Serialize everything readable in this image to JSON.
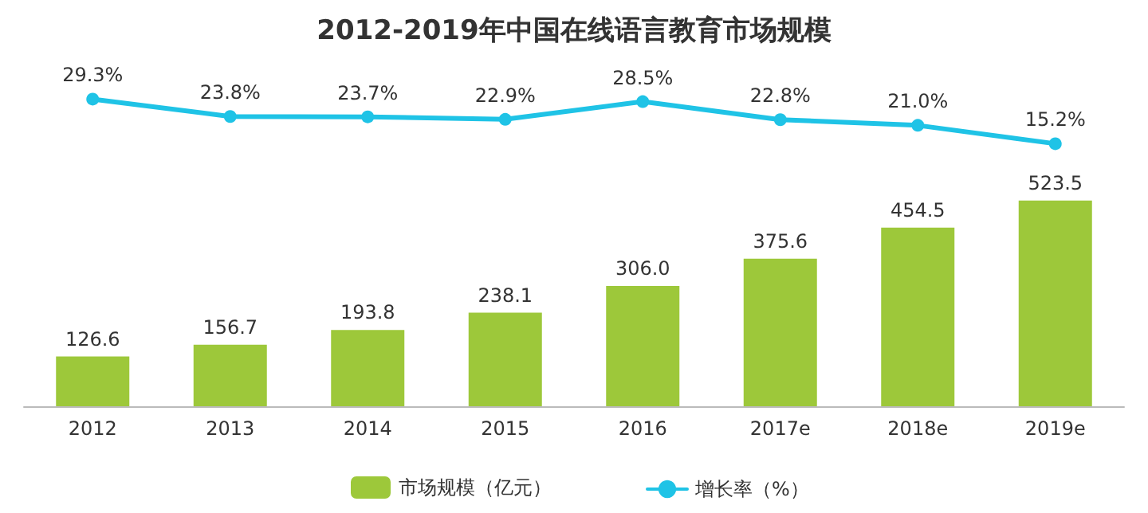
{
  "chart_data": [
    {
      "type": "line",
      "title": "2012-2019年中国在线语言教育市场规模",
      "categories": [
        null,
        null,
        null,
        null,
        null,
        null,
        null,
        null
      ],
      "series": [
        {
          "name": "增长率（%）",
          "color": "#1fc3e6",
          "values": [
            29.3,
            23.8,
            23.7,
            22.9,
            28.5,
            22.8,
            21.0,
            15.2
          ],
          "value_labels": [
            "29.3%",
            "23.8%",
            "23.7%",
            "22.9%",
            "28.5%",
            "22.8%",
            "21.0%",
            "15.2%"
          ]
        }
      ],
      "tick_labels": false,
      "grid": false,
      "legend": "bottom",
      "marker": "circle",
      "line_style": "solid"
    },
    {
      "type": "bar",
      "categories": [
        "2012",
        "2013",
        "2014",
        "2015",
        "2016",
        "2017e",
        "2018e",
        "2019e"
      ],
      "series": [
        {
          "name": "市场规模（亿元）",
          "color": "#9dc83a",
          "values": [
            126.6,
            156.7,
            193.8,
            238.1,
            306.0,
            375.6,
            454.5,
            523.5
          ],
          "value_labels": [
            "126.6",
            "156.7",
            "193.8",
            "238.1",
            "306.0",
            "375.6",
            "454.5",
            "523.5"
          ]
        }
      ],
      "tick_labels": "x",
      "grid": false,
      "legend": "bottom"
    }
  ]
}
